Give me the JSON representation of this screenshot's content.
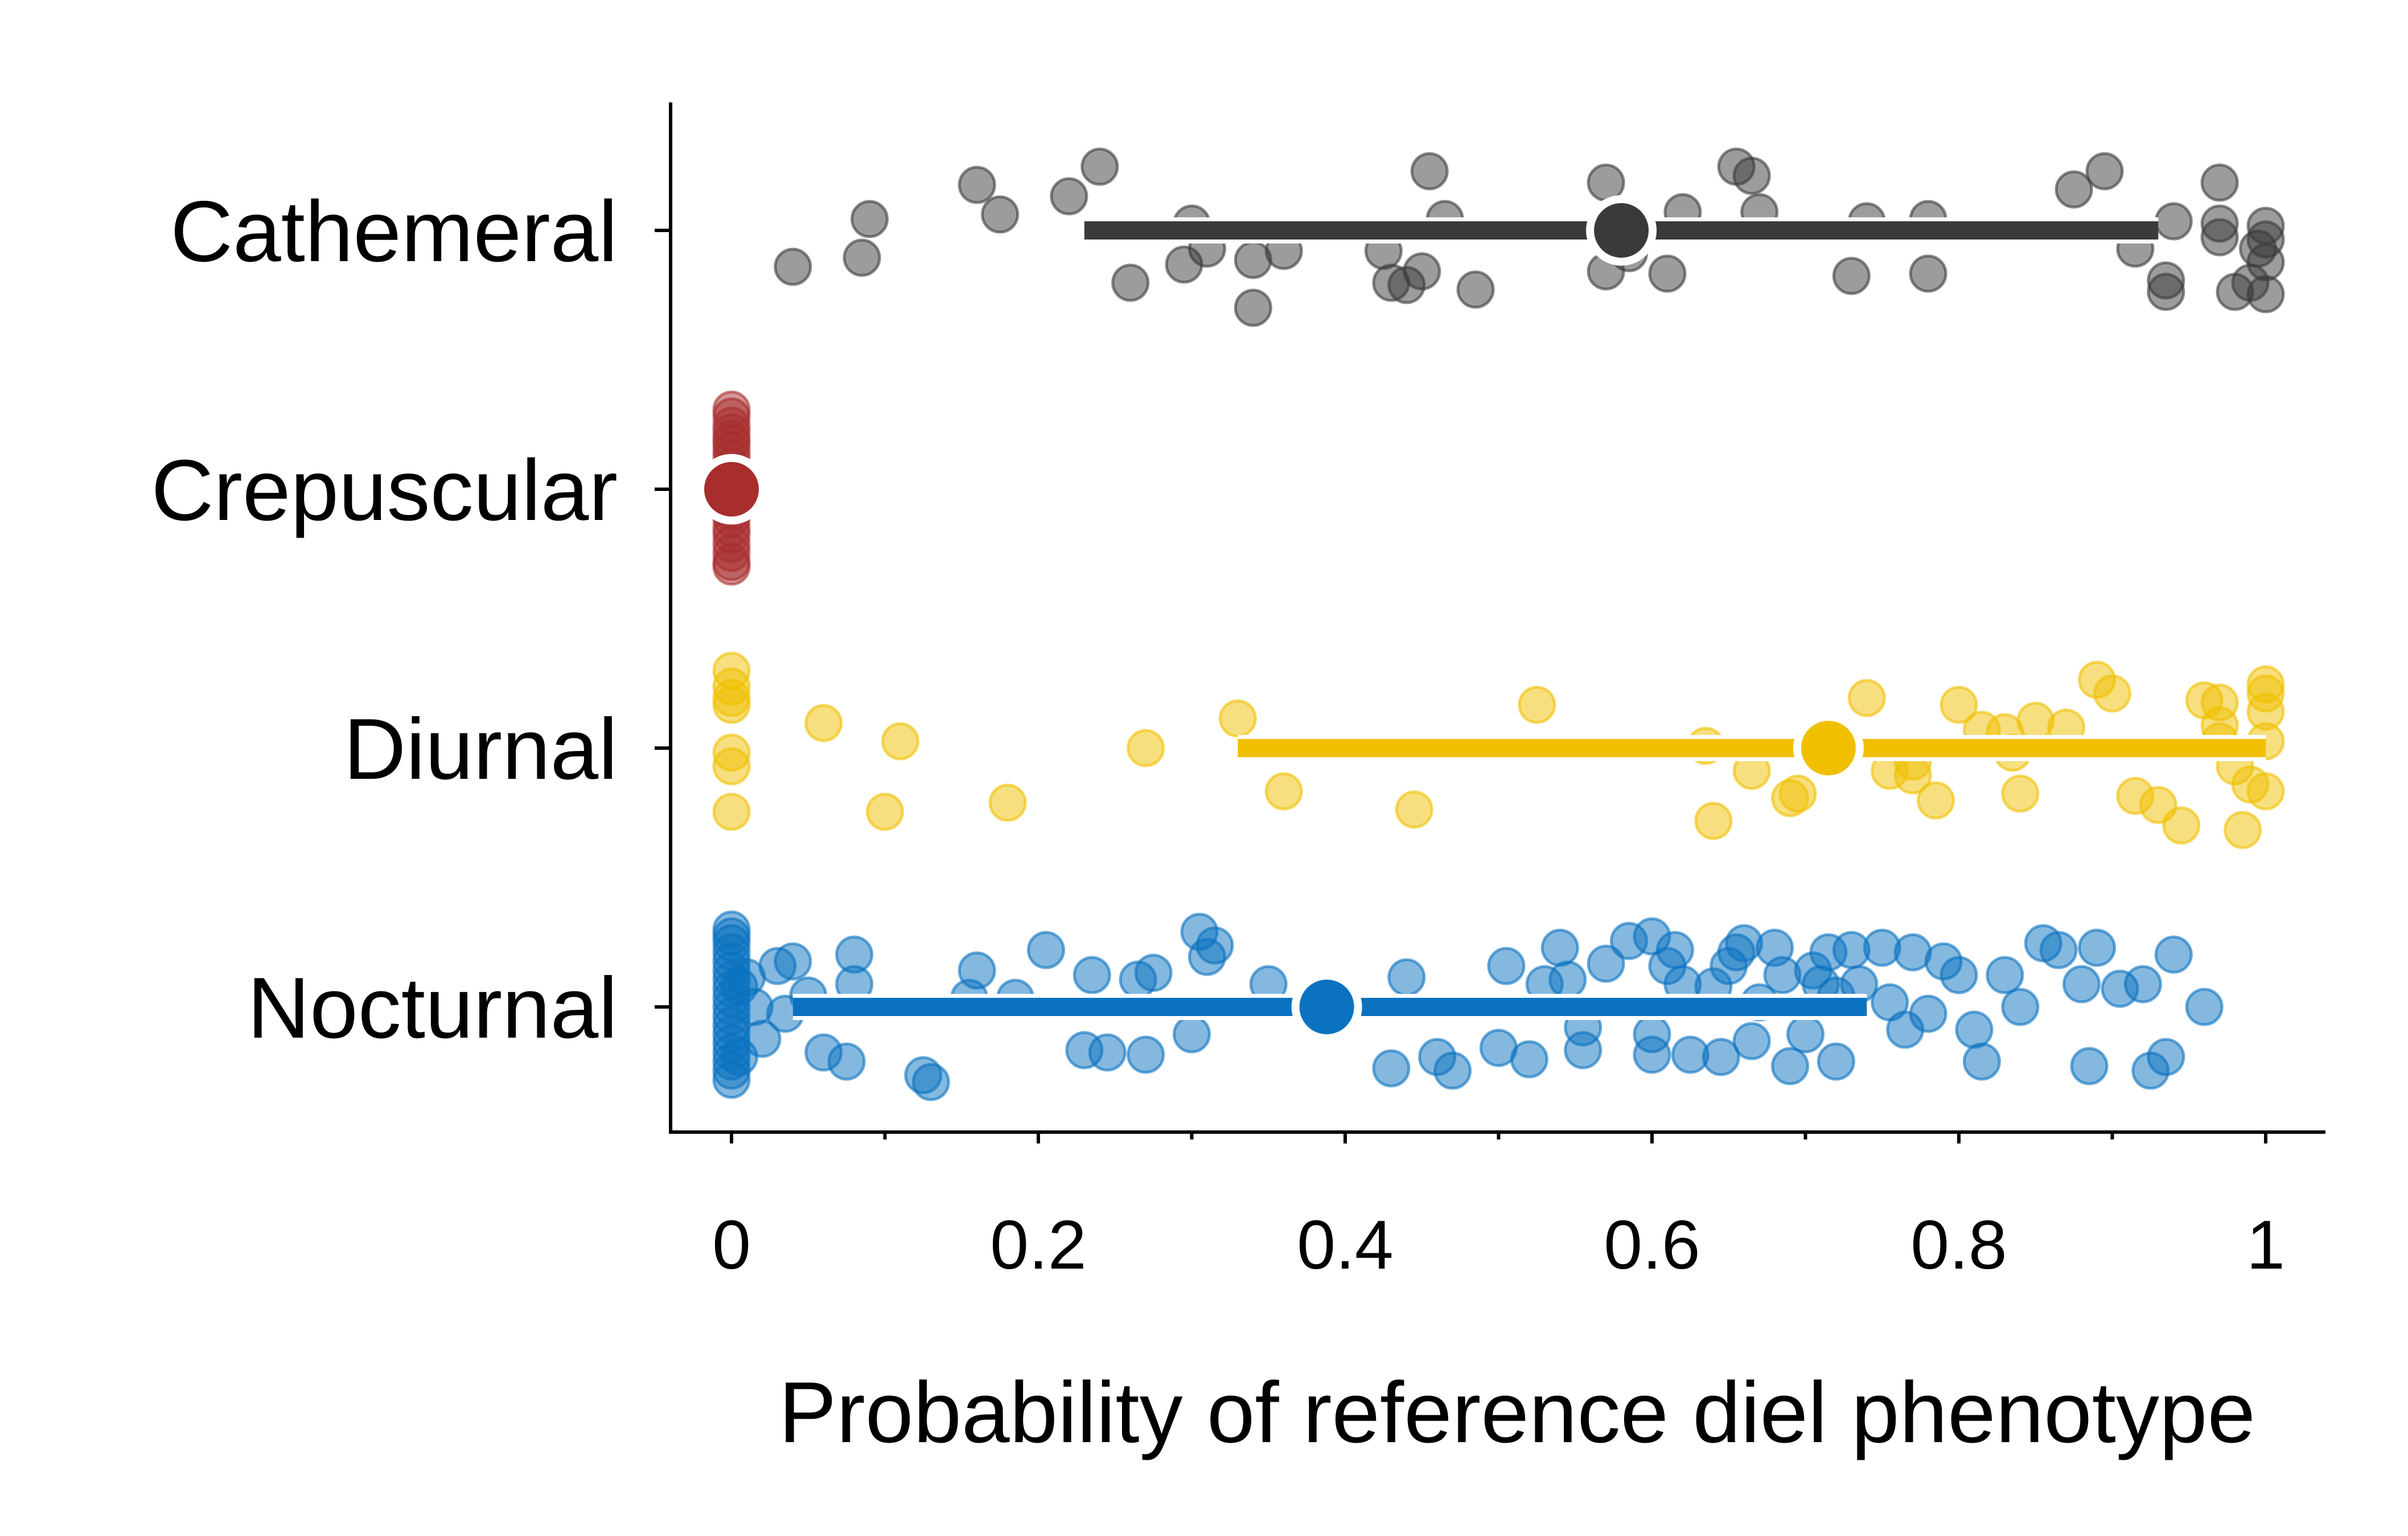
{
  "chart_data": {
    "type": "scatter",
    "subtype": "jittered strip plot with mean point and interval bar per category",
    "title": "",
    "xlabel": "Probability of reference diel phenotype",
    "ylabel": "",
    "xlim": [
      -0.04,
      1.04
    ],
    "x_ticks": [
      0,
      0.1,
      0.2,
      0.3,
      0.4,
      0.5,
      0.6,
      0.7,
      0.8,
      0.9,
      1
    ],
    "x_tick_labels": [
      "0",
      "",
      "0.2",
      "",
      "0.4",
      "",
      "0.6",
      "",
      "0.8",
      "",
      "1"
    ],
    "categories": [
      "Cathemeral",
      "Crepuscular",
      "Diurnal",
      "Nocturnal"
    ],
    "grid": false,
    "legend": "none",
    "series": [
      {
        "category": "Cathemeral",
        "color": "#3a3a3a",
        "mean": 0.58,
        "interval": [
          0.23,
          0.93
        ],
        "points": [
          [
            0.04,
            -0.16
          ],
          [
            0.085,
            -0.12
          ],
          [
            0.09,
            0.05
          ],
          [
            0.16,
            0.2
          ],
          [
            0.175,
            0.07
          ],
          [
            0.22,
            0.15
          ],
          [
            0.24,
            0.28
          ],
          [
            0.26,
            -0.23
          ],
          [
            0.295,
            -0.15
          ],
          [
            0.3,
            0.03
          ],
          [
            0.31,
            -0.08
          ],
          [
            0.34,
            -0.34
          ],
          [
            0.34,
            -0.13
          ],
          [
            0.36,
            -0.09
          ],
          [
            0.425,
            -0.09
          ],
          [
            0.43,
            -0.23
          ],
          [
            0.44,
            -0.24
          ],
          [
            0.45,
            -0.18
          ],
          [
            0.455,
            0.26
          ],
          [
            0.465,
            0.05
          ],
          [
            0.485,
            -0.26
          ],
          [
            0.57,
            0.21
          ],
          [
            0.575,
            0.04
          ],
          [
            0.57,
            -0.18
          ],
          [
            0.585,
            -0.1
          ],
          [
            0.61,
            -0.19
          ],
          [
            0.62,
            0.08
          ],
          [
            0.655,
            0.28
          ],
          [
            0.665,
            0.24
          ],
          [
            0.67,
            0.08
          ],
          [
            0.74,
            0.04
          ],
          [
            0.73,
            -0.2
          ],
          [
            0.78,
            0.05
          ],
          [
            0.78,
            -0.19
          ],
          [
            0.875,
            0.18
          ],
          [
            0.895,
            0.26
          ],
          [
            0.915,
            -0.08
          ],
          [
            0.935,
            -0.22
          ],
          [
            0.935,
            -0.27
          ],
          [
            0.94,
            0.04
          ],
          [
            0.97,
            0.21
          ],
          [
            0.97,
            0.03
          ],
          [
            0.98,
            -0.27
          ],
          [
            0.99,
            -0.23
          ],
          [
            1.0,
            0.02
          ],
          [
            1.0,
            -0.04
          ],
          [
            1.0,
            -0.14
          ],
          [
            1.0,
            -0.28
          ],
          [
            0.97,
            -0.03
          ],
          [
            0.995,
            -0.08
          ]
        ]
      },
      {
        "category": "Crepuscular",
        "color": "#a82e2e",
        "mean": 0.0,
        "interval": [
          0.0,
          0.0
        ],
        "points": [
          [
            0.0,
            0.35
          ],
          [
            0.0,
            0.32
          ],
          [
            0.0,
            0.28
          ],
          [
            0.0,
            0.25
          ],
          [
            0.0,
            0.22
          ],
          [
            0.0,
            0.2
          ],
          [
            0.0,
            0.17
          ],
          [
            0.0,
            0.14
          ],
          [
            0.0,
            0.1
          ],
          [
            0.0,
            0.06
          ],
          [
            0.0,
            0.03
          ],
          [
            0.0,
            -0.03
          ],
          [
            0.0,
            -0.06
          ],
          [
            0.0,
            -0.1
          ],
          [
            0.0,
            -0.13
          ],
          [
            0.0,
            -0.17
          ],
          [
            0.0,
            -0.2
          ],
          [
            0.0,
            -0.24
          ],
          [
            0.0,
            -0.28
          ],
          [
            0.0,
            -0.32
          ],
          [
            0.0,
            -0.34
          ],
          [
            0.0,
            0.0
          ]
        ]
      },
      {
        "category": "Diurnal",
        "color": "#f0c000",
        "mean": 0.715,
        "interval": [
          0.33,
          1.0
        ],
        "points": [
          [
            0.0,
            0.34
          ],
          [
            0.0,
            0.27
          ],
          [
            0.0,
            0.22
          ],
          [
            0.0,
            0.19
          ],
          [
            0.0,
            -0.02
          ],
          [
            0.0,
            -0.08
          ],
          [
            0.0,
            -0.28
          ],
          [
            0.06,
            0.11
          ],
          [
            0.1,
            -0.28
          ],
          [
            0.11,
            0.03
          ],
          [
            0.18,
            -0.24
          ],
          [
            0.27,
            0.0
          ],
          [
            0.33,
            0.13
          ],
          [
            0.36,
            -0.19
          ],
          [
            0.445,
            -0.27
          ],
          [
            0.525,
            0.19
          ],
          [
            0.635,
            0.01
          ],
          [
            0.64,
            -0.32
          ],
          [
            0.665,
            -0.1
          ],
          [
            0.69,
            -0.22
          ],
          [
            0.695,
            -0.2
          ],
          [
            0.72,
            -0.05
          ],
          [
            0.74,
            0.22
          ],
          [
            0.77,
            -0.12
          ],
          [
            0.785,
            -0.23
          ],
          [
            0.8,
            0.19
          ],
          [
            0.815,
            0.08
          ],
          [
            0.83,
            0.07
          ],
          [
            0.84,
            -0.2
          ],
          [
            0.85,
            0.12
          ],
          [
            0.87,
            0.09
          ],
          [
            0.89,
            0.3
          ],
          [
            0.9,
            0.24
          ],
          [
            0.915,
            -0.21
          ],
          [
            0.93,
            -0.25
          ],
          [
            0.945,
            -0.34
          ],
          [
            0.96,
            0.21
          ],
          [
            0.97,
            0.1
          ],
          [
            0.97,
            0.2
          ],
          [
            0.98,
            -0.08
          ],
          [
            0.99,
            -0.16
          ],
          [
            1.0,
            0.28
          ],
          [
            1.0,
            0.24
          ],
          [
            1.0,
            0.16
          ],
          [
            1.0,
            0.03
          ],
          [
            0.985,
            -0.36
          ],
          [
            1.0,
            -0.19
          ],
          [
            0.97,
            0.03
          ],
          [
            0.835,
            -0.02
          ],
          [
            0.755,
            -0.1
          ],
          [
            0.77,
            -0.06
          ]
        ]
      },
      {
        "category": "Nocturnal",
        "color": "#0a72c0",
        "mean": 0.388,
        "interval": [
          0.04,
          0.74
        ],
        "points": [
          [
            0.0,
            0.34
          ],
          [
            0.0,
            0.31
          ],
          [
            0.0,
            0.28
          ],
          [
            0.0,
            0.24
          ],
          [
            0.0,
            0.2
          ],
          [
            0.0,
            0.16
          ],
          [
            0.0,
            0.12
          ],
          [
            0.0,
            0.08
          ],
          [
            0.0,
            0.04
          ],
          [
            0.0,
            0.0
          ],
          [
            0.0,
            -0.04
          ],
          [
            0.0,
            -0.08
          ],
          [
            0.0,
            -0.12
          ],
          [
            0.0,
            -0.16
          ],
          [
            0.0,
            -0.2
          ],
          [
            0.0,
            -0.24
          ],
          [
            0.0,
            -0.28
          ],
          [
            0.0,
            -0.32
          ],
          [
            0.005,
            0.09
          ],
          [
            0.005,
            -0.22
          ],
          [
            0.01,
            0.13
          ],
          [
            0.015,
            0.0
          ],
          [
            0.02,
            -0.14
          ],
          [
            0.03,
            0.18
          ],
          [
            0.035,
            -0.03
          ],
          [
            0.04,
            0.2
          ],
          [
            0.05,
            0.05
          ],
          [
            0.06,
            -0.2
          ],
          [
            0.075,
            -0.24
          ],
          [
            0.08,
            0.23
          ],
          [
            0.08,
            0.1
          ],
          [
            0.125,
            -0.3
          ],
          [
            0.13,
            -0.33
          ],
          [
            0.155,
            0.04
          ],
          [
            0.16,
            0.16
          ],
          [
            0.185,
            0.04
          ],
          [
            0.205,
            0.25
          ],
          [
            0.23,
            -0.19
          ],
          [
            0.235,
            0.14
          ],
          [
            0.245,
            -0.2
          ],
          [
            0.265,
            0.12
          ],
          [
            0.27,
            -0.21
          ],
          [
            0.275,
            0.15
          ],
          [
            0.3,
            -0.12
          ],
          [
            0.31,
            0.22
          ],
          [
            0.305,
            0.33
          ],
          [
            0.315,
            0.27
          ],
          [
            0.35,
            0.1
          ],
          [
            0.39,
            -0.04
          ],
          [
            0.43,
            -0.27
          ],
          [
            0.44,
            0.13
          ],
          [
            0.46,
            -0.22
          ],
          [
            0.47,
            -0.28
          ],
          [
            0.5,
            -0.18
          ],
          [
            0.505,
            0.18
          ],
          [
            0.52,
            -0.23
          ],
          [
            0.53,
            0.1
          ],
          [
            0.54,
            0.26
          ],
          [
            0.555,
            -0.09
          ],
          [
            0.555,
            -0.19
          ],
          [
            0.57,
            0.19
          ],
          [
            0.585,
            0.29
          ],
          [
            0.6,
            0.31
          ],
          [
            0.61,
            0.18
          ],
          [
            0.6,
            -0.12
          ],
          [
            0.615,
            0.25
          ],
          [
            0.625,
            -0.21
          ],
          [
            0.64,
            0.09
          ],
          [
            0.645,
            -0.22
          ],
          [
            0.65,
            0.18
          ],
          [
            0.655,
            0.24
          ],
          [
            0.66,
            0.28
          ],
          [
            0.665,
            -0.15
          ],
          [
            0.67,
            0.02
          ],
          [
            0.68,
            0.26
          ],
          [
            0.685,
            0.14
          ],
          [
            0.69,
            -0.26
          ],
          [
            0.7,
            -0.12
          ],
          [
            0.71,
            0.1
          ],
          [
            0.715,
            0.24
          ],
          [
            0.72,
            0.05
          ],
          [
            0.73,
            0.25
          ],
          [
            0.75,
            0.26
          ],
          [
            0.755,
            0.02
          ],
          [
            0.765,
            -0.1
          ],
          [
            0.77,
            0.24
          ],
          [
            0.78,
            -0.03
          ],
          [
            0.8,
            0.14
          ],
          [
            0.81,
            -0.1
          ],
          [
            0.815,
            -0.24
          ],
          [
            0.83,
            0.14
          ],
          [
            0.84,
            0.0
          ],
          [
            0.855,
            0.28
          ],
          [
            0.865,
            0.25
          ],
          [
            0.88,
            0.1
          ],
          [
            0.885,
            -0.26
          ],
          [
            0.89,
            0.26
          ],
          [
            0.905,
            0.08
          ],
          [
            0.925,
            -0.28
          ],
          [
            0.935,
            -0.22
          ],
          [
            0.94,
            0.23
          ],
          [
            0.96,
            0.0
          ],
          [
            0.92,
            0.1
          ],
          [
            0.72,
            -0.24
          ],
          [
            0.705,
            0.16
          ],
          [
            0.735,
            0.1
          ],
          [
            0.79,
            0.2
          ],
          [
            0.545,
            0.12
          ],
          [
            0.6,
            -0.21
          ],
          [
            0.62,
            0.1
          ]
        ]
      }
    ]
  }
}
